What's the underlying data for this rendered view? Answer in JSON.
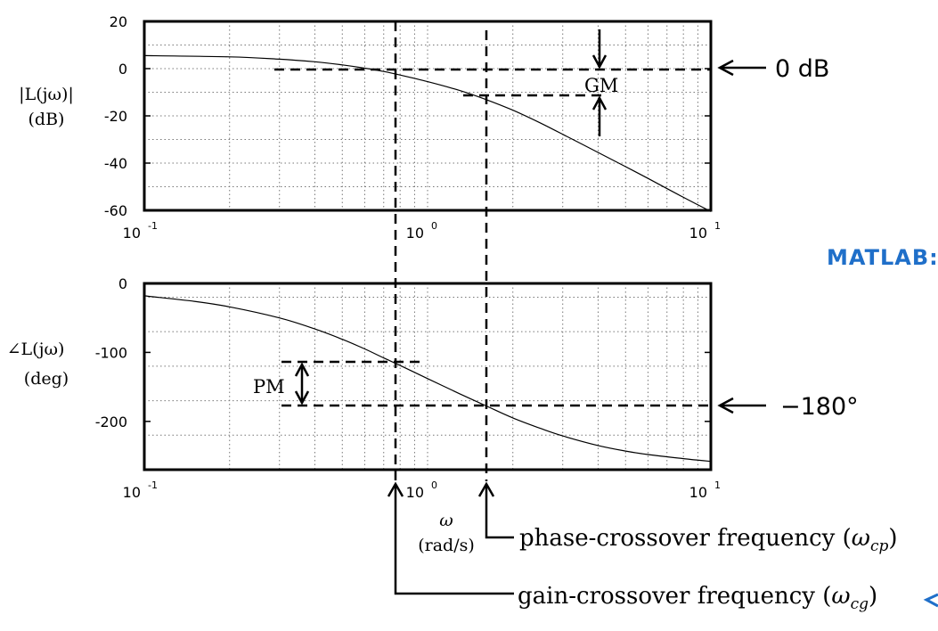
{
  "chart_data": [
    {
      "type": "line",
      "panel": "magnitude",
      "ylabel_line1": "|L(jω)|",
      "ylabel_line2": "(dB)",
      "xscale": "log",
      "xlim": [
        0.1,
        10
      ],
      "ylim": [
        -60,
        20
      ],
      "yticks": [
        "20",
        "0",
        "-20",
        "-40",
        "-60"
      ],
      "xticks": [
        {
          "base": "10",
          "exp": "-1"
        },
        {
          "base": "10",
          "exp": "0"
        },
        {
          "base": "10",
          "exp": "1"
        }
      ],
      "grid": true,
      "series": [
        {
          "x": [
            0.1,
            0.2,
            0.3,
            0.4,
            0.5,
            0.6,
            0.7,
            0.8,
            1.0,
            1.3,
            1.6,
            2.0,
            2.5,
            3.0,
            4.0,
            5.0,
            6.0,
            8.0,
            10.0
          ],
          "values": [
            5.5,
            5.0,
            4.0,
            2.9,
            1.6,
            0.2,
            -1.2,
            -2.7,
            -5.5,
            -9.3,
            -13.0,
            -17.6,
            -23.0,
            -27.8,
            -35.5,
            -41.5,
            -46.5,
            -54.5,
            -60.5
          ]
        }
      ]
    },
    {
      "type": "line",
      "panel": "phase",
      "ylabel_line1": "∠L(jω)",
      "ylabel_line2": "(deg)",
      "xscale": "log",
      "xlim": [
        0.1,
        10
      ],
      "ylim": [
        -270,
        0
      ],
      "yticks": [
        "0",
        "-100",
        "-200"
      ],
      "xticks": [
        {
          "base": "10",
          "exp": "-1"
        },
        {
          "base": "10",
          "exp": "0"
        },
        {
          "base": "10",
          "exp": "1"
        }
      ],
      "grid": true,
      "series": [
        {
          "x": [
            0.1,
            0.15,
            0.2,
            0.3,
            0.4,
            0.5,
            0.6,
            0.7,
            0.8,
            1.0,
            1.3,
            1.6,
            2.0,
            2.5,
            3.0,
            4.0,
            5.0,
            6.0,
            8.0,
            10.0
          ],
          "values": [
            -18,
            -26,
            -34,
            -50,
            -66,
            -81,
            -95,
            -108,
            -119,
            -138,
            -160,
            -177,
            -195,
            -210,
            -221,
            -235,
            -243,
            -248,
            -254,
            -258
          ]
        }
      ]
    }
  ],
  "annotations": {
    "zero_db": "0 dB",
    "gm": "GM",
    "pm": "PM",
    "minus180": "−180°",
    "omega": "ω",
    "omega_unit": "(rad/s)",
    "phase_crossover_text": "phase-crossover frequency (",
    "phase_crossover_symbol": "ω",
    "phase_crossover_sub": "cp",
    "phase_crossover_close": ")",
    "gain_crossover_text": "gain-crossover frequency (",
    "gain_crossover_symbol": "ω",
    "gain_crossover_sub": "cg",
    "gain_crossover_close": ")",
    "matlab_note": "MATLAB:"
  }
}
